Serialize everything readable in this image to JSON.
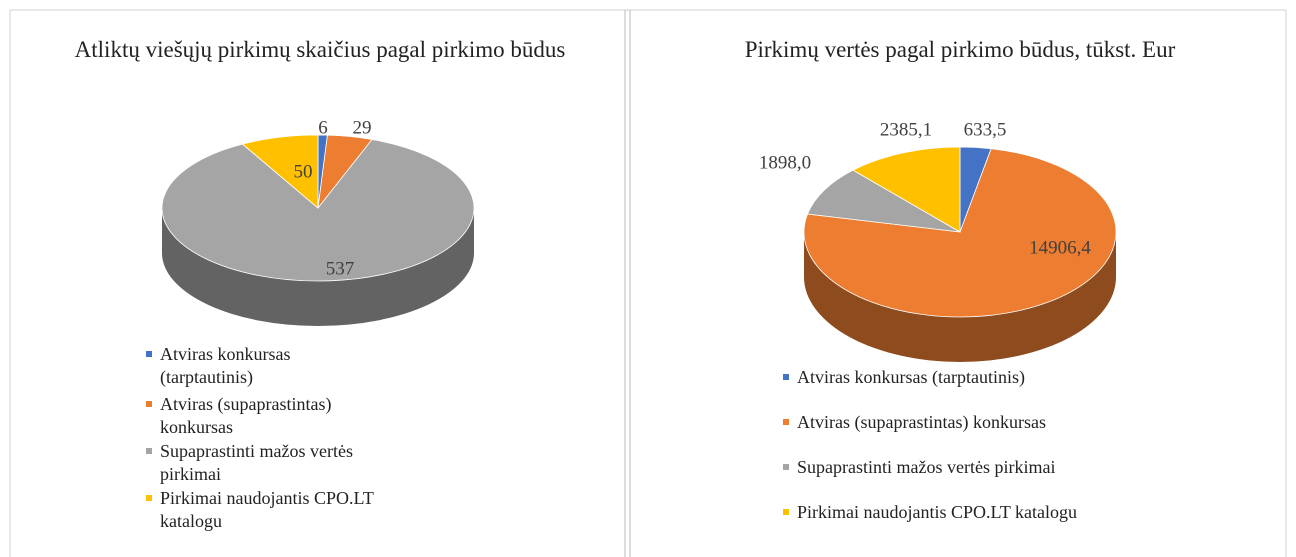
{
  "chart_data": [
    {
      "type": "pie",
      "title": "Atliktų viešųjų pirkimų skaičius pagal pirkimo būdus",
      "categories": [
        "Atviras konkursas (tarptautinis)",
        "Atviras (supaprastintas) konkursas",
        "Supaprastinti mažos vertės pirkimai",
        "Pirkimai naudojantis CPO.LT katalogu"
      ],
      "values": [
        6,
        29,
        537,
        50
      ],
      "colors": [
        "#4472c4",
        "#ed7d31",
        "#a5a5a5",
        "#ffc000"
      ]
    },
    {
      "type": "pie",
      "title": "Pirkimų vertės pagal pirkimo būdus, tūkst. Eur",
      "categories": [
        "Atviras konkursas (tarptautinis)",
        "Atviras (supaprastintas) konkursas",
        "Supaprastinti mažos vertės pirkimai",
        "Pirkimai naudojantis CPO.LT katalogu"
      ],
      "values": [
        633.5,
        14906.4,
        1898.0,
        2385.1
      ],
      "value_labels": [
        "633,5",
        "14906,4",
        "1898,0",
        "2385,1"
      ],
      "colors": [
        "#4472c4",
        "#ed7d31",
        "#a5a5a5",
        "#ffc000"
      ]
    }
  ]
}
